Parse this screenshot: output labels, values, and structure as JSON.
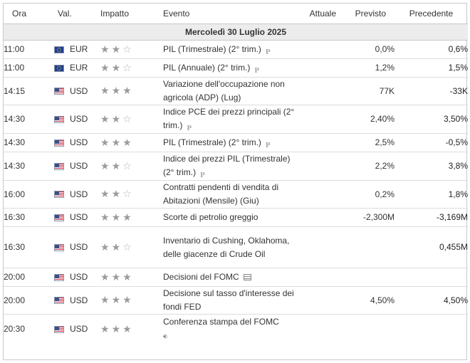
{
  "headers": {
    "ora": "Ora",
    "valuta": "Val.",
    "impatto": "Impatto",
    "evento": "Evento",
    "attuale": "Attuale",
    "previsto": "Previsto",
    "precedente": "Precedente"
  },
  "date_label": "Mercoledì 30 Luglio 2025",
  "events": [
    {
      "time": "11:00",
      "currency": "EUR",
      "flag": "eu-flag-icon",
      "stars": 2,
      "name": "PIL (Trimestrale) (2° trim.)",
      "icon": "preliminary-icon",
      "icon_text": "P",
      "actual": "",
      "forecast": "0,0%",
      "previous": "0,6%"
    },
    {
      "time": "11:00",
      "currency": "EUR",
      "flag": "eu-flag-icon",
      "stars": 2,
      "name": "PIL (Annuale) (2° trim.)",
      "icon": "preliminary-icon",
      "icon_text": "P",
      "actual": "",
      "forecast": "1,2%",
      "previous": "1,5%"
    },
    {
      "time": "14:15",
      "currency": "USD",
      "flag": "us-flag-icon",
      "stars": 3,
      "name": "Variazione dell'occupazione non agricola (ADP) (Lug)",
      "icon": "",
      "icon_text": "",
      "actual": "",
      "forecast": "77K",
      "previous": "-33K"
    },
    {
      "time": "14:30",
      "currency": "USD",
      "flag": "us-flag-icon",
      "stars": 2,
      "name": "Indice PCE dei prezzi principali (2° trim.)",
      "icon": "preliminary-icon",
      "icon_text": "P",
      "actual": "",
      "forecast": "2,40%",
      "previous": "3,50%"
    },
    {
      "time": "14:30",
      "currency": "USD",
      "flag": "us-flag-icon",
      "stars": 3,
      "name": "PIL (Trimestrale) (2° trim.)",
      "icon": "preliminary-icon",
      "icon_text": "P",
      "actual": "",
      "forecast": "2,5%",
      "previous": "-0,5%"
    },
    {
      "time": "14:30",
      "currency": "USD",
      "flag": "us-flag-icon",
      "stars": 2,
      "name": "Indice dei prezzi PIL (Trimestrale) (2° trim.)",
      "icon": "preliminary-icon",
      "icon_text": "P",
      "actual": "",
      "forecast": "2,2%",
      "previous": "3,8%"
    },
    {
      "time": "16:00",
      "currency": "USD",
      "flag": "us-flag-icon",
      "stars": 2,
      "name": "Contratti pendenti di vendita di Abitazioni (Mensile) (Giu)",
      "icon": "",
      "icon_text": "",
      "actual": "",
      "forecast": "0,2%",
      "previous": "1,8%"
    },
    {
      "time": "16:30",
      "currency": "USD",
      "flag": "us-flag-icon",
      "stars": 3,
      "name": "Scorte di petrolio greggio",
      "icon": "",
      "icon_text": "",
      "actual": "",
      "forecast": "-2,300M",
      "previous": "-3,169M"
    },
    {
      "time": "16:30",
      "currency": "USD",
      "flag": "us-flag-icon",
      "stars": 2,
      "name": "Inventario di Cushing, Oklahoma, delle giacenze di Crude Oil",
      "icon": "",
      "icon_text": "",
      "actual": "",
      "forecast": "",
      "previous": "0,455M"
    },
    {
      "time": "20:00",
      "currency": "USD",
      "flag": "us-flag-icon",
      "stars": 3,
      "name": "Decisioni del FOMC",
      "icon": "news-icon",
      "icon_text": "",
      "actual": "",
      "forecast": "",
      "previous": ""
    },
    {
      "time": "20:00",
      "currency": "USD",
      "flag": "us-flag-icon",
      "stars": 3,
      "name": "Decisione sul tasso d'interesse dei fondi FED",
      "icon": "",
      "icon_text": "",
      "actual": "",
      "forecast": "4,50%",
      "previous": "4,50%"
    },
    {
      "time": "20:30",
      "currency": "USD",
      "flag": "us-flag-icon",
      "stars": 3,
      "name": "Conferenza stampa del FOMC",
      "icon": "speaker-icon",
      "icon_text": "",
      "actual": "",
      "forecast": "",
      "previous": ""
    }
  ],
  "colors": {
    "star_on": "#9b9b9b",
    "star_off": "#b5b5b5",
    "date_bg": "#ececec",
    "border": "#c9c9c9"
  }
}
